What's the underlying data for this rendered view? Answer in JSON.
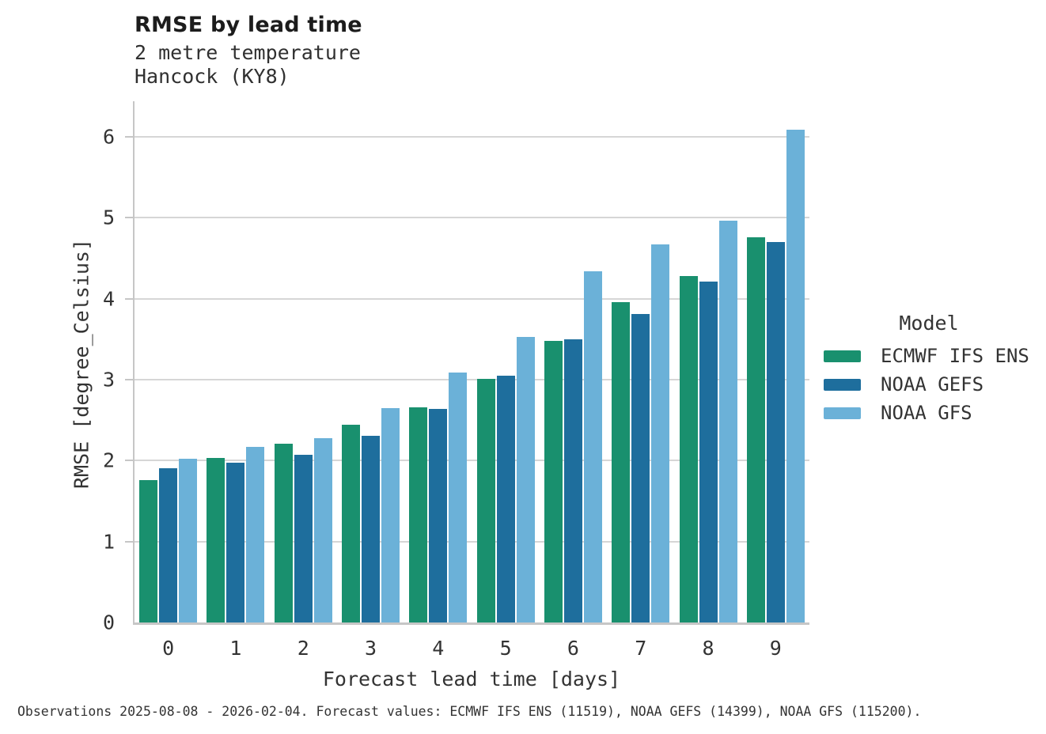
{
  "header": {
    "title": "RMSE by lead time",
    "subtitle_line1": "2 metre temperature",
    "subtitle_line2": "Hancock (KY8)"
  },
  "footer": {
    "text": "Observations 2025-08-08 - 2026-02-04. Forecast values: ECMWF IFS ENS (11519), NOAA GEFS (14399), NOAA GFS (115200)."
  },
  "colors": {
    "ecmwf_green": "#19906e",
    "gefs_dark_blue": "#1e6e9d",
    "gfs_light_blue": "#6bb1d8",
    "gridline": "#d6d6d6",
    "axis_spine": "#c6c6c6",
    "text": "#333333"
  },
  "chart_data": {
    "type": "bar",
    "title": "RMSE by lead time",
    "subtitle": [
      "2 metre temperature",
      "Hancock (KY8)"
    ],
    "categories": [
      0,
      1,
      2,
      3,
      4,
      5,
      6,
      7,
      8,
      9
    ],
    "series": [
      {
        "name": "ECMWF IFS ENS",
        "color": "#19906e",
        "values": [
          1.76,
          2.03,
          2.21,
          2.44,
          2.66,
          3.01,
          3.48,
          3.96,
          4.28,
          4.76
        ]
      },
      {
        "name": "NOAA GEFS",
        "color": "#1e6e9d",
        "values": [
          1.91,
          1.97,
          2.07,
          2.31,
          2.64,
          3.05,
          3.5,
          3.81,
          4.21,
          4.7
        ]
      },
      {
        "name": "NOAA GFS",
        "color": "#6bb1d8",
        "values": [
          2.02,
          2.17,
          2.28,
          2.65,
          3.09,
          3.53,
          4.34,
          4.67,
          4.96,
          6.09
        ]
      }
    ],
    "xlabel": "Forecast lead time [days]",
    "ylabel": "RMSE [degree_Celsius]",
    "ylim": [
      0,
      6.44
    ],
    "yticks": [
      0,
      1,
      2,
      3,
      4,
      5,
      6
    ],
    "grid": "horizontal",
    "legend_title": "Model",
    "legend_position": "right"
  }
}
